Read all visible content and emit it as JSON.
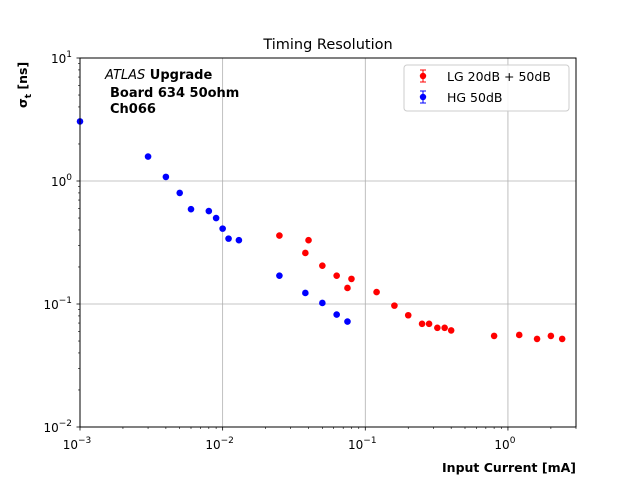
{
  "chart_data": {
    "type": "scatter",
    "title": "Timing Resolution",
    "xlabel": "Input Current [mA]",
    "ylabel": "σ",
    "ylabel_sub": "t",
    "ylabel_unit": " [ns]",
    "xscale": "log",
    "yscale": "log",
    "xlim": [
      0.001,
      3.0
    ],
    "ylim": [
      0.01,
      10
    ],
    "grid": "major x and y",
    "legend_position": "top-right",
    "x_ticks": [
      {
        "value": 0.001,
        "base": "10",
        "exp": "−3"
      },
      {
        "value": 0.01,
        "base": "10",
        "exp": "−2"
      },
      {
        "value": 0.1,
        "base": "10",
        "exp": "−1"
      },
      {
        "value": 1,
        "base": "10",
        "exp": "0"
      }
    ],
    "y_ticks": [
      {
        "value": 0.01,
        "base": "10",
        "exp": "−2"
      },
      {
        "value": 0.1,
        "base": "10",
        "exp": "−1"
      },
      {
        "value": 1,
        "base": "10",
        "exp": "0"
      },
      {
        "value": 10,
        "base": "10",
        "exp": "1"
      }
    ],
    "annotation": {
      "italic": "ATLAS",
      "bold": " Upgrade",
      "lines": [
        "Board 634 50ohm",
        "Ch066"
      ]
    },
    "series": [
      {
        "name": "LG 20dB + 50dB",
        "color": "#ff0000",
        "x": [
          0.025,
          0.038,
          0.04,
          0.05,
          0.063,
          0.075,
          0.08,
          0.12,
          0.16,
          0.2,
          0.25,
          0.28,
          0.32,
          0.36,
          0.4,
          0.8,
          1.2,
          1.6,
          2.0,
          2.4
        ],
        "y": [
          0.36,
          0.26,
          0.33,
          0.205,
          0.17,
          0.135,
          0.16,
          0.125,
          0.097,
          0.081,
          0.069,
          0.069,
          0.064,
          0.064,
          0.061,
          0.055,
          0.056,
          0.052,
          0.055,
          0.052
        ]
      },
      {
        "name": "HG 50dB",
        "color": "#0000ff",
        "x": [
          0.001,
          0.003,
          0.004,
          0.005,
          0.006,
          0.008,
          0.009,
          0.01,
          0.011,
          0.013,
          0.025,
          0.038,
          0.05,
          0.063,
          0.075
        ],
        "y": [
          3.05,
          1.58,
          1.08,
          0.8,
          0.59,
          0.57,
          0.5,
          0.41,
          0.34,
          0.33,
          0.17,
          0.123,
          0.102,
          0.082,
          0.072
        ]
      }
    ]
  }
}
